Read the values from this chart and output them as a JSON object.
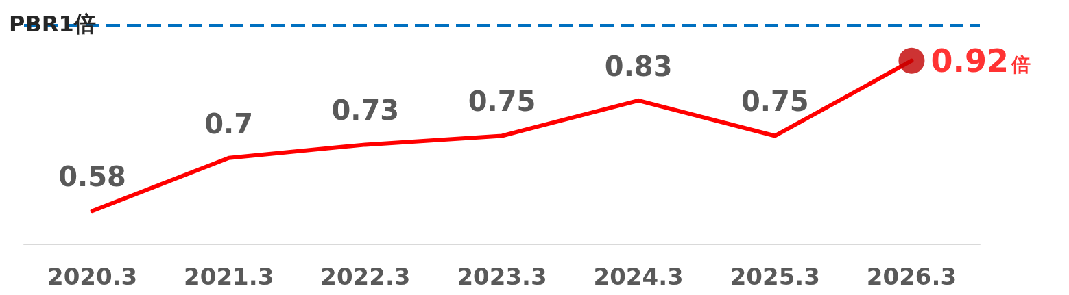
{
  "chart_data": {
    "type": "line",
    "categories": [
      "2020.3",
      "2021.3",
      "2022.3",
      "2023.3",
      "2024.3",
      "2025.3",
      "2026.3"
    ],
    "series": [
      {
        "type": "line",
        "color": "#ff0000",
        "values": [
          0.58,
          0.7,
          0.73,
          0.75,
          0.83,
          0.75,
          0.92
        ],
        "value_labels": [
          "0.58",
          "0.7",
          "0.73",
          "0.75",
          "0.83",
          "0.75",
          null
        ]
      },
      {
        "type": "scatter",
        "color": "#c00000",
        "x": [
          "2026.3"
        ],
        "values": [
          0.92
        ]
      }
    ],
    "line_style": "solid",
    "grid": false,
    "ref_lines": [
      {
        "axis": "y",
        "value": 1,
        "label": "PBR1倍",
        "color": "#0070c0",
        "line_style": "dashed"
      }
    ],
    "annotations": [
      {
        "text": "0.92倍",
        "x": "2026.3",
        "y": 0.92
      }
    ]
  }
}
